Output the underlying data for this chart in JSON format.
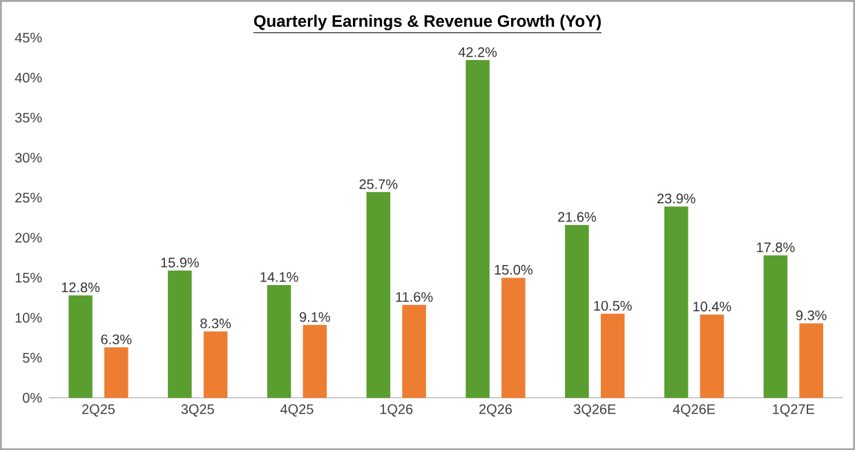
{
  "chart_data": {
    "type": "bar",
    "title": "Quarterly Earnings & Revenue Growth (YoY)",
    "categories": [
      "2Q25",
      "3Q25",
      "4Q25",
      "1Q26",
      "2Q26",
      "3Q26E",
      "4Q26E",
      "1Q27E"
    ],
    "series": [
      {
        "color": "#5a9e2f",
        "values": [
          12.8,
          15.9,
          14.1,
          25.7,
          42.2,
          21.6,
          23.9,
          17.8
        ],
        "value_labels": [
          "12.8%",
          "15.9%",
          "14.1%",
          "25.7%",
          "42.2%",
          "21.6%",
          "23.9%",
          "17.8%"
        ]
      },
      {
        "color": "#ed7d31",
        "values": [
          6.3,
          8.3,
          9.1,
          11.6,
          15.0,
          10.5,
          10.4,
          9.3
        ],
        "value_labels": [
          "6.3%",
          "8.3%",
          "9.1%",
          "11.6%",
          "15.0%",
          "10.5%",
          "10.4%",
          "9.3%"
        ]
      }
    ],
    "ylim": [
      0,
      45
    ],
    "yticks": [
      {
        "value": 0,
        "label": "0%"
      },
      {
        "value": 5,
        "label": "5%"
      },
      {
        "value": 10,
        "label": "10%"
      },
      {
        "value": 15,
        "label": "15%"
      },
      {
        "value": 20,
        "label": "20%"
      },
      {
        "value": 25,
        "label": "25%"
      },
      {
        "value": 30,
        "label": "30%"
      },
      {
        "value": 35,
        "label": "35%"
      },
      {
        "value": 40,
        "label": "40%"
      },
      {
        "value": 45,
        "label": "45%"
      }
    ],
    "grid": false
  }
}
